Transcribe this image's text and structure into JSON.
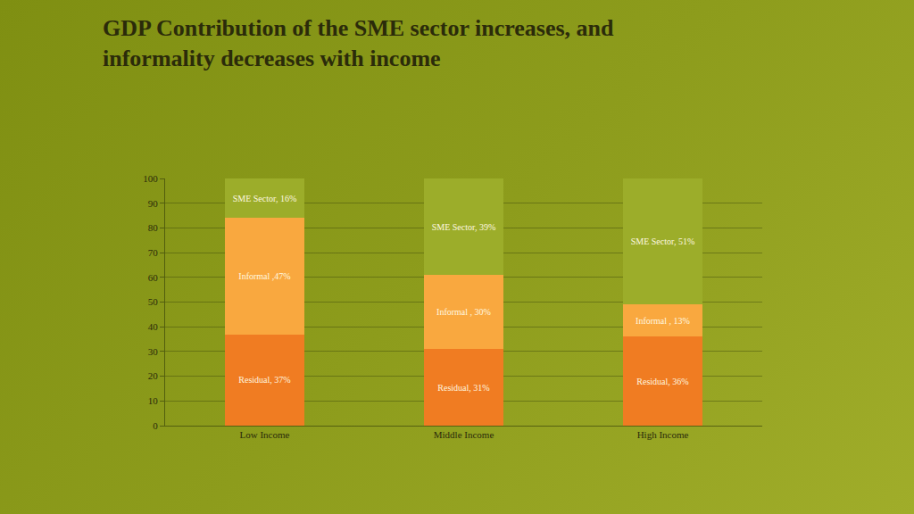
{
  "chart_data": {
    "type": "bar",
    "title": "GDP Contribution of the SME sector increases, and informality decreases with income",
    "categories": [
      "Low Income",
      "Middle Income",
      "High Income"
    ],
    "series": [
      {
        "name": "Residual",
        "color": "#f07c22",
        "values": [
          37,
          31,
          36
        ],
        "value_labels": [
          "Residual, 37%",
          "Residual, 31%",
          "Residual, 36%"
        ]
      },
      {
        "name": "Informal",
        "color": "#f9a83f",
        "values": [
          47,
          30,
          13
        ],
        "value_labels": [
          "Informal ,47%",
          "Informal , 30%",
          "Informal , 13%"
        ]
      },
      {
        "name": "SME Sector",
        "color": "#9cad2a",
        "values": [
          16,
          39,
          51
        ],
        "value_labels": [
          "SME Sector, 16%",
          "SME Sector, 39%",
          "SME Sector, 51%"
        ]
      }
    ],
    "ylim": [
      0,
      100
    ],
    "yticks": [
      0,
      10,
      20,
      30,
      40,
      50,
      60,
      70,
      80,
      90,
      100
    ],
    "grid": true,
    "stacked": true,
    "data_labels": true
  }
}
